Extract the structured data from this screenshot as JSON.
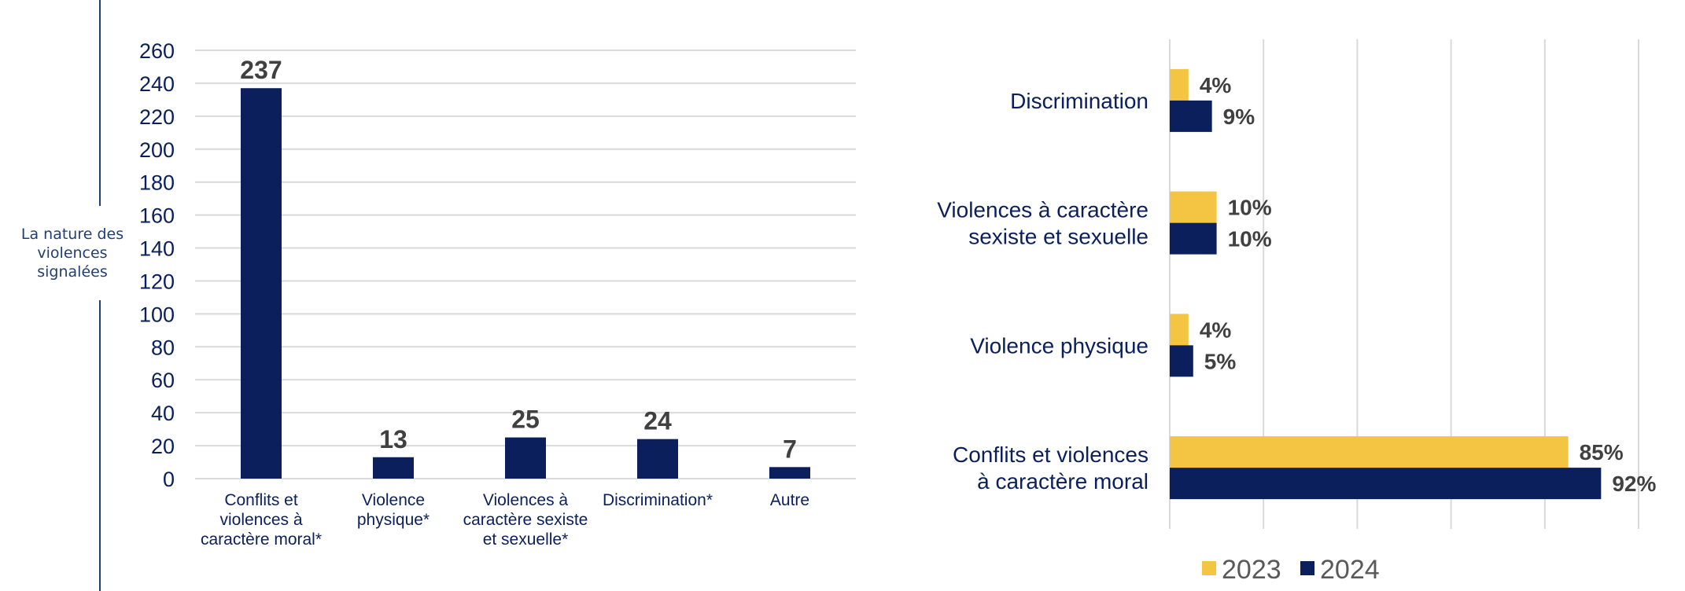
{
  "side_label": "La nature des\nviolences\nsignalées",
  "colors": {
    "y2024": "#0a1f5c",
    "y2023": "#f4c542",
    "grid": "#d9d9d9",
    "rule": "#1f3f75"
  },
  "chart_data": [
    {
      "type": "bar",
      "categories": [
        [
          "Conflits et",
          "violences à",
          "caractère moral*"
        ],
        [
          "Violence",
          "physique*"
        ],
        [
          "Violences à",
          "caractère sexiste",
          "et sexuelle*"
        ],
        [
          "Discrimination*"
        ],
        [
          "Autre"
        ]
      ],
      "values": [
        237,
        13,
        25,
        24,
        7
      ],
      "ylim": [
        0,
        260
      ],
      "yticks": [
        0,
        20,
        40,
        60,
        80,
        100,
        120,
        140,
        160,
        180,
        200,
        220,
        240,
        260
      ],
      "grid": true
    },
    {
      "type": "bar",
      "orientation": "horizontal",
      "categories": [
        [
          "Discrimination"
        ],
        [
          "Violences à caractère",
          "sexiste et sexuelle"
        ],
        [
          "Violence physique"
        ],
        [
          "Conflits et violences",
          "à caractère moral"
        ]
      ],
      "series": [
        {
          "name": "2023",
          "values": [
            4,
            10,
            4,
            85
          ],
          "labels": [
            "4%",
            "10%",
            "4%",
            "85%"
          ]
        },
        {
          "name": "2024",
          "values": [
            9,
            10,
            5,
            92
          ],
          "labels": [
            "9%",
            "10%",
            "5%",
            "92%"
          ]
        }
      ],
      "xlim": [
        0,
        100
      ],
      "grid": true,
      "legend_position": "bottom"
    }
  ]
}
